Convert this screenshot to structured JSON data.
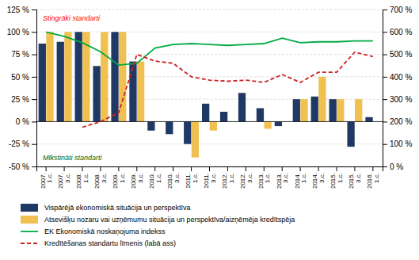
{
  "chart_data": {
    "type": "bar",
    "categories": [
      "2007.\n1.c.",
      "2007.\n3.c.",
      "2008.\n1.c.",
      "2008.\n3.c.",
      "2009.\n1.c.",
      "2009.\n3.c.",
      "2010.\n1.c.",
      "2010.\n3.c.",
      "2011.\n1.c.",
      "2011.\n3.c.",
      "2012.\n1.c.",
      "2012.\n3.c.",
      "2013.\n1.c.",
      "2013.\n3.c.",
      "2014.\n1.c.",
      "2014.\n3.c.",
      "2015.\n1.c.",
      "2015.\n3.c.",
      "2016.\n1.c."
    ],
    "series": [
      {
        "name": "Vispārējā ekonomiskā situācija un perspektīva",
        "type": "bar",
        "color": "#1F3864",
        "values": [
          87,
          89,
          100,
          62,
          100,
          67,
          -10,
          -14,
          -25,
          20,
          11,
          32,
          15,
          -5,
          25,
          28,
          25,
          -28,
          5
        ]
      },
      {
        "name": "Atsevišķu nozaru vai uzņēmumu situācija un perspektīva/aizņēmēja kredītspēja",
        "type": "bar",
        "color": "#F0C050",
        "values": [
          100,
          100,
          100,
          100,
          100,
          67,
          0,
          0,
          -40,
          -10,
          0,
          0,
          -8,
          0,
          25,
          50,
          25,
          25,
          0
        ]
      },
      {
        "name": "EK Ekonomiskā noskaņojuma indekss",
        "type": "line",
        "line_style": "solid",
        "color": "#00AA44",
        "values": [
          100,
          95,
          88,
          78,
          63,
          65,
          82,
          86,
          87,
          86,
          85,
          86,
          87,
          93,
          88,
          89,
          89,
          90,
          90
        ]
      },
      {
        "name": "Kredītēšanas standartu līmenis (labā ass)",
        "type": "line",
        "line_style": "dashed",
        "color": "#CC2222",
        "axis": "y2",
        "values": [
          null,
          null,
          175,
          200,
          240,
          500,
          470,
          460,
          400,
          385,
          380,
          385,
          375,
          410,
          375,
          420,
          420,
          510,
          490
        ]
      }
    ],
    "ylim": [
      -50,
      125
    ],
    "yticks": [
      {
        "value": -50,
        "label": "-50 %"
      },
      {
        "value": -25,
        "label": "-25 %"
      },
      {
        "value": 0,
        "label": "0 %"
      },
      {
        "value": 25,
        "label": "25 %"
      },
      {
        "value": 50,
        "label": "50 %"
      },
      {
        "value": 75,
        "label": "75 %"
      },
      {
        "value": 100,
        "label": "100 %"
      },
      {
        "value": 125,
        "label": "125 %"
      }
    ],
    "y2lim": [
      0,
      700
    ],
    "y2ticks": [
      {
        "value": 0,
        "label": "0 %"
      },
      {
        "value": 100,
        "label": "100 %"
      },
      {
        "value": 200,
        "label": "200 %"
      },
      {
        "value": 300,
        "label": "300 %"
      },
      {
        "value": 400,
        "label": "400 %"
      },
      {
        "value": 500,
        "label": "500 %"
      },
      {
        "value": 600,
        "label": "600 %"
      },
      {
        "value": 700,
        "label": "700 %"
      }
    ],
    "grid": true,
    "legend": "bottom",
    "annotations": [
      {
        "text": "Stingrāki standarti",
        "color": "red"
      },
      {
        "text": "Mīkstināti standarti",
        "color": "darkgreen"
      }
    ]
  }
}
